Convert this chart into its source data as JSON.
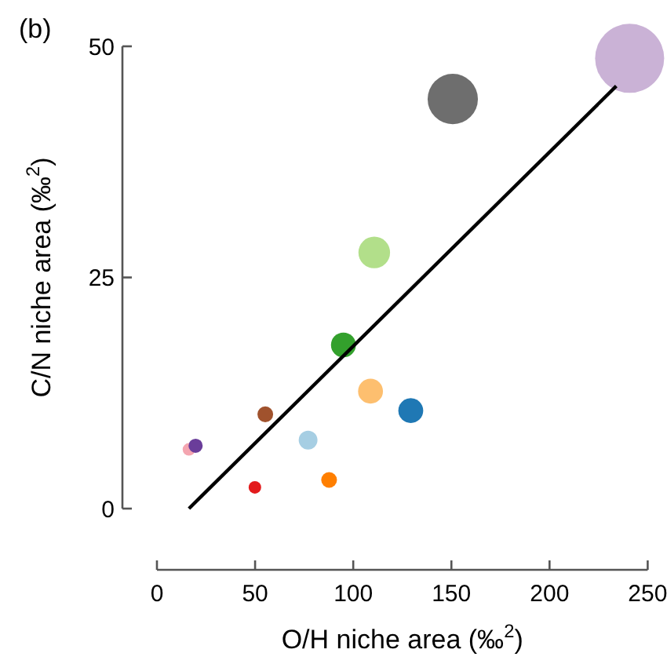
{
  "chart_data": {
    "type": "bubble",
    "title": "(b)",
    "xlabel": "O/H niche area (‰$^{2}$)",
    "ylabel": "C/N niche area (‰$^{2}$)",
    "xlim": [
      0,
      250
    ],
    "xticks": [
      0,
      50,
      100,
      150,
      200,
      250
    ],
    "ylim": [
      0,
      50
    ],
    "yticks": [
      0,
      25,
      50
    ],
    "grid": false,
    "series": [
      {
        "x": [
          16.3,
          19.7,
          55.2,
          49.9,
          77,
          87.7,
          95,
          108.8,
          129.3,
          110.7,
          150.7,
          240.8
        ],
        "values": [
          6.4,
          6.8,
          10.2,
          2.3,
          7.4,
          3.1,
          17.7,
          12.7,
          10.6,
          27.7,
          44.3,
          48.7
        ],
        "sizes": [
          0.033,
          0.042,
          0.052,
          0.033,
          0.074,
          0.052,
          0.13,
          0.13,
          0.13,
          0.21,
          0.53,
          1
        ],
        "colors": [
          "#f4a5b0",
          "#6a3d9a",
          "#a0522d",
          "#e31a1c",
          "#a6cee3",
          "#ff7f00",
          "#33a02c",
          "#fdbf6f",
          "#1f78b4",
          "#b2df8a",
          "#6e6e6e",
          "#cab2d6"
        ]
      },
      {
        "type": "line",
        "x": [
          16.3,
          234
        ],
        "values": [
          0,
          45.7
        ],
        "color": "#000000",
        "line_style": "solid"
      }
    ]
  }
}
